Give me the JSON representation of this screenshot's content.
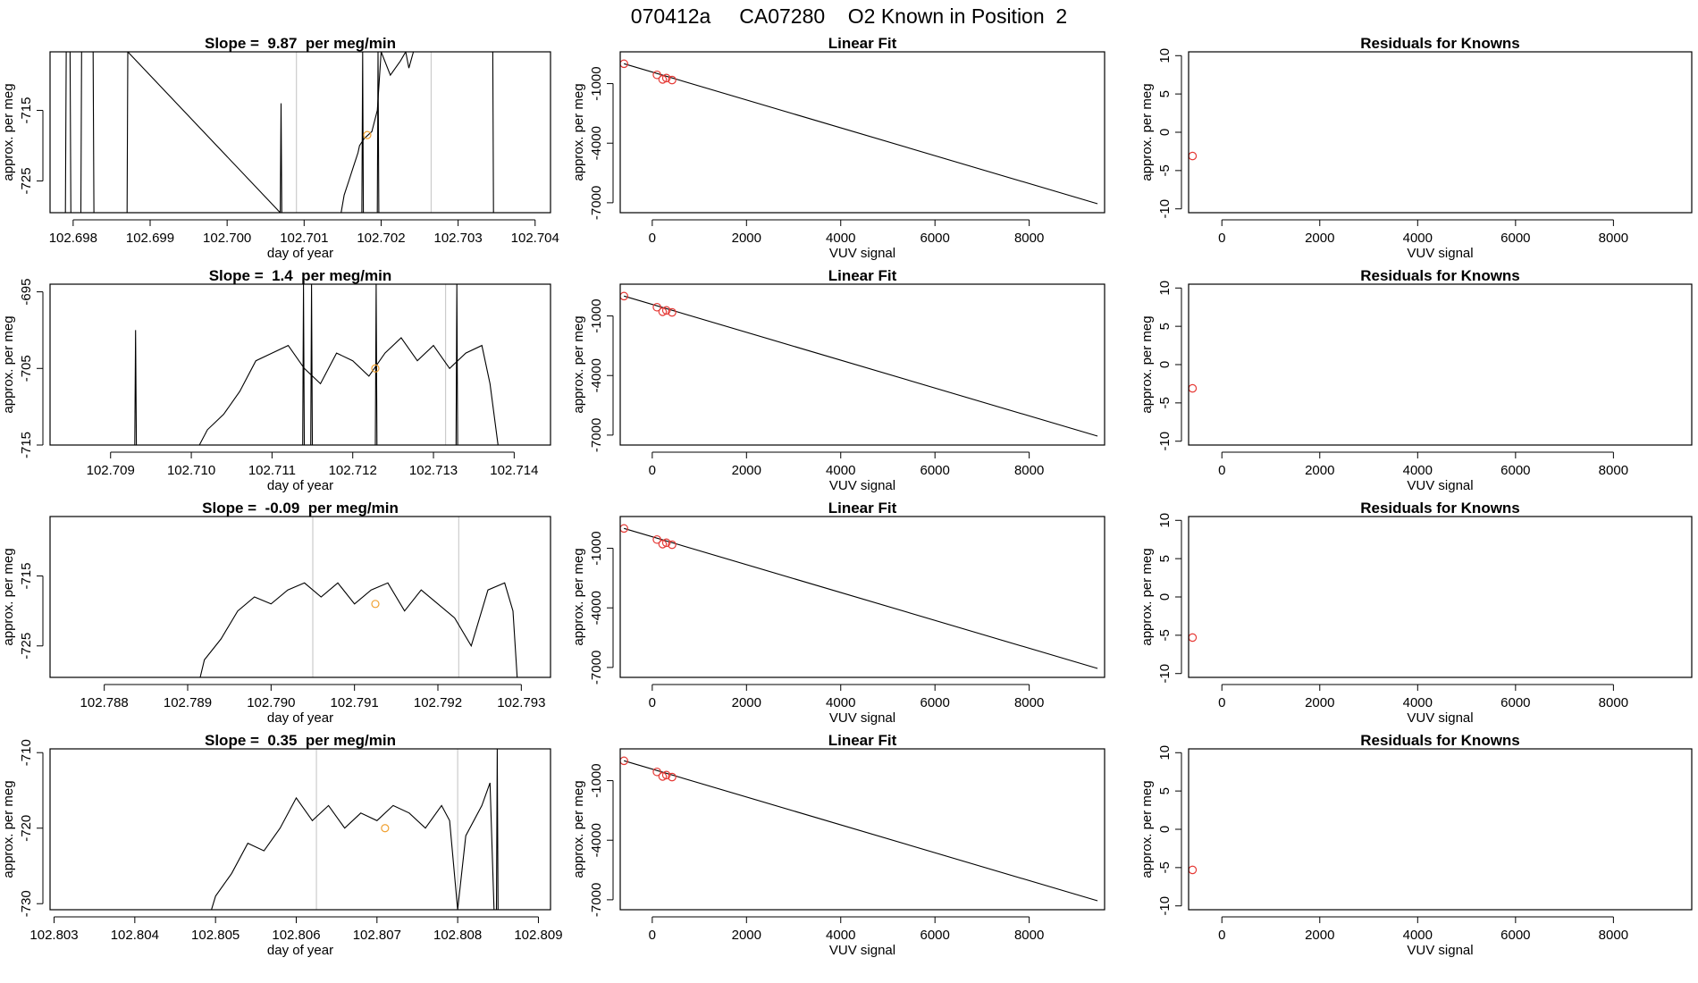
{
  "page_title": "070412a     CA07280    O2 Known in Position  2",
  "colors": {
    "line": "#000000",
    "marker": "#e53935",
    "marker_alt": "#f0a030",
    "vline": "#cccccc",
    "frame": "#000000"
  },
  "chart_data": [
    {
      "type": "line",
      "panel": "timeseries",
      "row": 1,
      "title": "Slope =  9.87  per meg/min",
      "xlabel": "day of year",
      "ylabel": "approx. per meg",
      "xlim": [
        102.6977,
        102.7042
      ],
      "ylim": [
        -729.5,
        -706.7
      ],
      "xticks": [
        102.698,
        102.699,
        102.7,
        102.701,
        102.702,
        102.703,
        102.704
      ],
      "xtick_labels": [
        "102.698",
        "102.699",
        "102.700",
        "102.701",
        "102.702",
        "102.703",
        "102.704"
      ],
      "yticks": [
        -715,
        -725
      ],
      "ytick_labels": [
        "-715",
        "-725"
      ],
      "vlines": [
        102.7009,
        102.70265
      ],
      "marker": {
        "x": 102.70182,
        "y": -718.5
      },
      "series": [
        {
          "name": "trace",
          "x": [
            102.6979,
            102.69791,
            102.69796,
            102.69797,
            102.6981,
            102.69811,
            102.69826,
            102.69827,
            102.6987,
            102.69871,
            102.70069,
            102.7007,
            102.70071,
            102.70148,
            102.70152,
            102.70158,
            102.70164,
            102.7017,
            102.70172,
            102.70178,
            102.70188,
            102.70195,
            102.702,
            102.70212,
            102.70225,
            102.70232,
            102.70236,
            102.70242,
            102.7025,
            102.70345,
            102.70346
          ],
          "y": [
            -729.5,
            -706.7,
            -706.7,
            -729.5,
            -729.5,
            -706.7,
            -706.7,
            -729.5,
            -729.5,
            -706.7,
            -729.5,
            -714,
            -729.5,
            -729.5,
            -727,
            -725,
            -723,
            -721,
            -720,
            -719,
            -718,
            -715,
            -706.7,
            -710,
            -708,
            -706.7,
            -709,
            -706.7,
            -706.7,
            -706.7,
            -729.5
          ]
        },
        {
          "name": "spike",
          "x": [
            102.70175,
            102.70176,
            102.70177
          ],
          "y": [
            -729.5,
            -706.7,
            -729.5
          ]
        },
        {
          "name": "spike2",
          "x": [
            102.70195,
            102.70196,
            102.70197
          ],
          "y": [
            -729.5,
            -706.7,
            -729.5
          ]
        }
      ]
    },
    {
      "type": "scatter",
      "panel": "linear_fit",
      "row": 1,
      "title": "Linear Fit",
      "xlabel": "VUV signal",
      "ylabel": "approx. per meg",
      "xlim": [
        -680,
        9600
      ],
      "ylim": [
        -7500,
        600
      ],
      "xticks": [
        0,
        2000,
        4000,
        6000,
        8000
      ],
      "xtick_labels": [
        "0",
        "2000",
        "4000",
        "6000",
        "8000"
      ],
      "yticks": [
        -1000,
        -4000,
        -7000
      ],
      "ytick_labels": [
        "-1000",
        "-4000",
        "-7000"
      ],
      "points": [
        [
          -600,
          0
        ],
        [
          100,
          -560
        ],
        [
          220,
          -790
        ],
        [
          300,
          -720
        ],
        [
          420,
          -820
        ]
      ],
      "fit_line": [
        [
          -600,
          0
        ],
        [
          9450,
          -7050
        ]
      ]
    },
    {
      "type": "scatter",
      "panel": "residuals",
      "row": 1,
      "title": "Residuals for Knowns",
      "xlabel": "VUV signal",
      "ylabel": "approx. per meg",
      "xlim": [
        -680,
        9600
      ],
      "ylim": [
        -10.5,
        10.5
      ],
      "xticks": [
        0,
        2000,
        4000,
        6000,
        8000
      ],
      "xtick_labels": [
        "0",
        "2000",
        "4000",
        "6000",
        "8000"
      ],
      "yticks": [
        10,
        5,
        0,
        -5,
        -10
      ],
      "ytick_labels": [
        "10",
        "5",
        "0",
        "-5",
        "-10"
      ],
      "points": [
        [
          -600,
          -3.1
        ]
      ]
    },
    {
      "type": "line",
      "panel": "timeseries",
      "row": 2,
      "title": "Slope =  1.4  per meg/min",
      "xlabel": "day of year",
      "ylabel": "approx. per meg",
      "xlim": [
        102.70825,
        102.71445
      ],
      "ylim": [
        -715,
        -694
      ],
      "xticks": [
        102.709,
        102.71,
        102.711,
        102.712,
        102.713,
        102.714
      ],
      "xtick_labels": [
        "102.709",
        "102.710",
        "102.711",
        "102.712",
        "102.713",
        "102.714"
      ],
      "yticks": [
        -695,
        -705,
        -715
      ],
      "ytick_labels": [
        "-695",
        "-705",
        "-715"
      ],
      "vlines": [
        102.71315
      ],
      "marker": {
        "x": 102.71228,
        "y": -705
      },
      "series": [
        {
          "name": "trace",
          "x": [
            102.7093,
            102.70931,
            102.70932,
            102.7101,
            102.7102,
            102.7104,
            102.7106,
            102.7108,
            102.711,
            102.7112,
            102.7114,
            102.7116,
            102.7118,
            102.712,
            102.7122,
            102.7124,
            102.7126,
            102.7128,
            102.713,
            102.7132,
            102.7134,
            102.7136,
            102.7137,
            102.7138
          ],
          "y": [
            -715,
            -700,
            -715,
            -715,
            -713,
            -711,
            -708,
            -704,
            -703,
            -702,
            -705,
            -707,
            -703,
            -704,
            -706,
            -703,
            -701,
            -704,
            -702,
            -705,
            -703,
            -702,
            -707,
            -715
          ]
        },
        {
          "name": "spike",
          "x": [
            102.71138,
            102.71139,
            102.7114,
            102.71148,
            102.71149,
            102.7115
          ],
          "y": [
            -715,
            -694,
            -715,
            -715,
            -694,
            -715
          ]
        },
        {
          "name": "spike2",
          "x": [
            102.71228,
            102.71229,
            102.7123,
            102.71328,
            102.71329,
            102.7133
          ],
          "y": [
            -715,
            -694,
            -715,
            -715,
            -694,
            -715
          ]
        }
      ]
    },
    {
      "type": "scatter",
      "panel": "linear_fit",
      "row": 2,
      "title": "Linear Fit",
      "xlabel": "VUV signal",
      "ylabel": "approx. per meg",
      "xlim": [
        -680,
        9600
      ],
      "ylim": [
        -7500,
        600
      ],
      "xticks": [
        0,
        2000,
        4000,
        6000,
        8000
      ],
      "xtick_labels": [
        "0",
        "2000",
        "4000",
        "6000",
        "8000"
      ],
      "yticks": [
        -1000,
        -4000,
        -7000
      ],
      "ytick_labels": [
        "-1000",
        "-4000",
        "-7000"
      ],
      "points": [
        [
          -600,
          0
        ],
        [
          100,
          -560
        ],
        [
          220,
          -790
        ],
        [
          300,
          -720
        ],
        [
          420,
          -820
        ]
      ],
      "fit_line": [
        [
          -600,
          0
        ],
        [
          9450,
          -7050
        ]
      ]
    },
    {
      "type": "scatter",
      "panel": "residuals",
      "row": 2,
      "title": "Residuals for Knowns",
      "xlabel": "VUV signal",
      "ylabel": "approx. per meg",
      "xlim": [
        -680,
        9600
      ],
      "ylim": [
        -10.5,
        10.5
      ],
      "xticks": [
        0,
        2000,
        4000,
        6000,
        8000
      ],
      "xtick_labels": [
        "0",
        "2000",
        "4000",
        "6000",
        "8000"
      ],
      "yticks": [
        10,
        5,
        0,
        -5,
        -10
      ],
      "ytick_labels": [
        "10",
        "5",
        "0",
        "-5",
        "-10"
      ],
      "points": [
        [
          -600,
          -3.1
        ]
      ]
    },
    {
      "type": "line",
      "panel": "timeseries",
      "row": 3,
      "title": "Slope =  -0.09  per meg/min",
      "xlabel": "day of year",
      "ylabel": "approx. per meg",
      "xlim": [
        102.78735,
        102.79335
      ],
      "ylim": [
        -729.5,
        -706.5
      ],
      "xticks": [
        102.788,
        102.789,
        102.79,
        102.791,
        102.792,
        102.793
      ],
      "xtick_labels": [
        "102.788",
        "102.789",
        "102.790",
        "102.791",
        "102.792",
        "102.793"
      ],
      "yticks": [
        -715,
        -725
      ],
      "ytick_labels": [
        "-715",
        "-725"
      ],
      "vlines": [
        102.7905,
        102.79225
      ],
      "marker": {
        "x": 102.79125,
        "y": -719
      },
      "series": [
        {
          "name": "trace",
          "x": [
            102.78915,
            102.7892,
            102.7894,
            102.7896,
            102.7898,
            102.79,
            102.7902,
            102.7904,
            102.7906,
            102.7908,
            102.791,
            102.7912,
            102.7914,
            102.7916,
            102.7918,
            102.792,
            102.7922,
            102.7924,
            102.7926,
            102.7928,
            102.7929,
            102.79295
          ],
          "y": [
            -729.5,
            -727,
            -724,
            -720,
            -718,
            -719,
            -717,
            -716,
            -718,
            -716,
            -719,
            -717,
            -716,
            -720,
            -717,
            -719,
            -721,
            -725,
            -717,
            -716,
            -720,
            -729.5
          ]
        }
      ]
    },
    {
      "type": "scatter",
      "panel": "linear_fit",
      "row": 3,
      "title": "Linear Fit",
      "xlabel": "VUV signal",
      "ylabel": "approx. per meg",
      "xlim": [
        -680,
        9600
      ],
      "ylim": [
        -7500,
        600
      ],
      "xticks": [
        0,
        2000,
        4000,
        6000,
        8000
      ],
      "xtick_labels": [
        "0",
        "2000",
        "4000",
        "6000",
        "8000"
      ],
      "yticks": [
        -1000,
        -4000,
        -7000
      ],
      "ytick_labels": [
        "-1000",
        "-4000",
        "-7000"
      ],
      "points": [
        [
          -600,
          0
        ],
        [
          100,
          -560
        ],
        [
          220,
          -790
        ],
        [
          300,
          -720
        ],
        [
          420,
          -820
        ]
      ],
      "fit_line": [
        [
          -600,
          0
        ],
        [
          9450,
          -7050
        ]
      ]
    },
    {
      "type": "scatter",
      "panel": "residuals",
      "row": 3,
      "title": "Residuals for Knowns",
      "xlabel": "VUV signal",
      "ylabel": "approx. per meg",
      "xlim": [
        -680,
        9600
      ],
      "ylim": [
        -10.5,
        10.5
      ],
      "xticks": [
        0,
        2000,
        4000,
        6000,
        8000
      ],
      "xtick_labels": [
        "0",
        "2000",
        "4000",
        "6000",
        "8000"
      ],
      "yticks": [
        10,
        5,
        0,
        -5,
        -10
      ],
      "ytick_labels": [
        "10",
        "5",
        "0",
        "-5",
        "-10"
      ],
      "points": [
        [
          -600,
          -5.3
        ]
      ]
    },
    {
      "type": "line",
      "panel": "timeseries",
      "row": 4,
      "title": "Slope =  0.35  per meg/min",
      "xlabel": "day of year",
      "ylabel": "approx. per meg",
      "xlim": [
        102.80295,
        102.80915
      ],
      "ylim": [
        -730.8,
        -709.5
      ],
      "xticks": [
        102.803,
        102.804,
        102.805,
        102.806,
        102.807,
        102.808,
        102.809
      ],
      "xtick_labels": [
        "102.803",
        "102.804",
        "102.805",
        "102.806",
        "102.807",
        "102.808",
        "102.809"
      ],
      "yticks": [
        -710,
        -720,
        -730
      ],
      "ytick_labels": [
        "-710",
        "-720",
        "-730"
      ],
      "vlines": [
        102.80625,
        102.808
      ],
      "marker": {
        "x": 102.8071,
        "y": -720
      },
      "series": [
        {
          "name": "trace",
          "x": [
            102.80495,
            102.805,
            102.8052,
            102.8054,
            102.8056,
            102.8058,
            102.806,
            102.8062,
            102.8064,
            102.8066,
            102.8068,
            102.807,
            102.8072,
            102.8074,
            102.8076,
            102.8078,
            102.8079,
            102.808,
            102.8081,
            102.8083,
            102.8084,
            102.80845
          ],
          "y": [
            -730.8,
            -729,
            -726,
            -722,
            -723,
            -720,
            -716,
            -719,
            -717,
            -720,
            -718,
            -719,
            -717,
            -718,
            -720,
            -717,
            -719,
            -730.8,
            -721,
            -717,
            -714,
            -730.8
          ]
        },
        {
          "name": "spike",
          "x": [
            102.80848,
            102.80849,
            102.8085
          ],
          "y": [
            -730.8,
            -709.5,
            -730.8
          ]
        }
      ]
    },
    {
      "type": "scatter",
      "panel": "linear_fit",
      "row": 4,
      "title": "Linear Fit",
      "xlabel": "VUV signal",
      "ylabel": "approx. per meg",
      "xlim": [
        -680,
        9600
      ],
      "ylim": [
        -7500,
        600
      ],
      "xticks": [
        0,
        2000,
        4000,
        6000,
        8000
      ],
      "xtick_labels": [
        "0",
        "2000",
        "4000",
        "6000",
        "8000"
      ],
      "yticks": [
        -1000,
        -4000,
        -7000
      ],
      "ytick_labels": [
        "-1000",
        "-4000",
        "-7000"
      ],
      "points": [
        [
          -600,
          0
        ],
        [
          100,
          -560
        ],
        [
          220,
          -790
        ],
        [
          300,
          -720
        ],
        [
          420,
          -820
        ]
      ],
      "fit_line": [
        [
          -600,
          0
        ],
        [
          9450,
          -7050
        ]
      ]
    },
    {
      "type": "scatter",
      "panel": "residuals",
      "row": 4,
      "title": "Residuals for Knowns",
      "xlabel": "VUV signal",
      "ylabel": "approx. per meg",
      "xlim": [
        -680,
        9600
      ],
      "ylim": [
        -10.5,
        10.5
      ],
      "xticks": [
        0,
        2000,
        4000,
        6000,
        8000
      ],
      "xtick_labels": [
        "0",
        "2000",
        "4000",
        "6000",
        "8000"
      ],
      "yticks": [
        10,
        5,
        0,
        -5,
        -10
      ],
      "ytick_labels": [
        "10",
        "5",
        "0",
        "-5",
        "-10"
      ],
      "points": [
        [
          -600,
          -5.3
        ]
      ]
    }
  ]
}
